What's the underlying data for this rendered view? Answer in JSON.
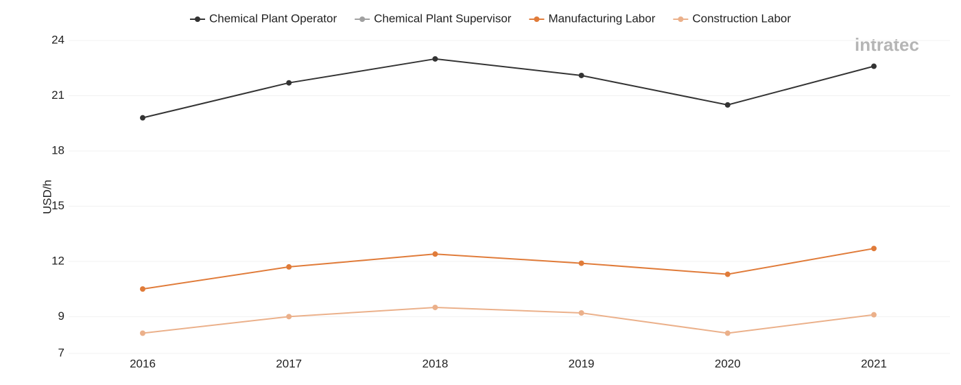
{
  "chart_data": {
    "type": "line",
    "y_label": "USD/h",
    "logo": "intratec",
    "x": [
      "2016",
      "2017",
      "2018",
      "2019",
      "2020",
      "2021"
    ],
    "series": [
      {
        "name": "Chemical Plant Operator",
        "color": "#333333",
        "values": [
          19.8,
          21.7,
          23.0,
          22.1,
          20.5,
          22.6
        ]
      },
      {
        "name": "Chemical Plant Supervisor",
        "color": "#a0a0a0",
        "values": [
          null,
          null,
          null,
          null,
          null,
          null
        ]
      },
      {
        "name": "Manufacturing Labor",
        "color": "#e07b39",
        "values": [
          10.5,
          11.7,
          12.4,
          11.9,
          11.3,
          12.7
        ]
      },
      {
        "name": "Construction Labor",
        "color": "#ebb08a",
        "values": [
          8.1,
          9.0,
          9.5,
          9.2,
          8.1,
          9.1
        ]
      }
    ],
    "ylim": [
      7,
      24
    ],
    "yticks": [
      7,
      9,
      12,
      15,
      18,
      21,
      24
    ],
    "grid": true,
    "legend": "top"
  }
}
